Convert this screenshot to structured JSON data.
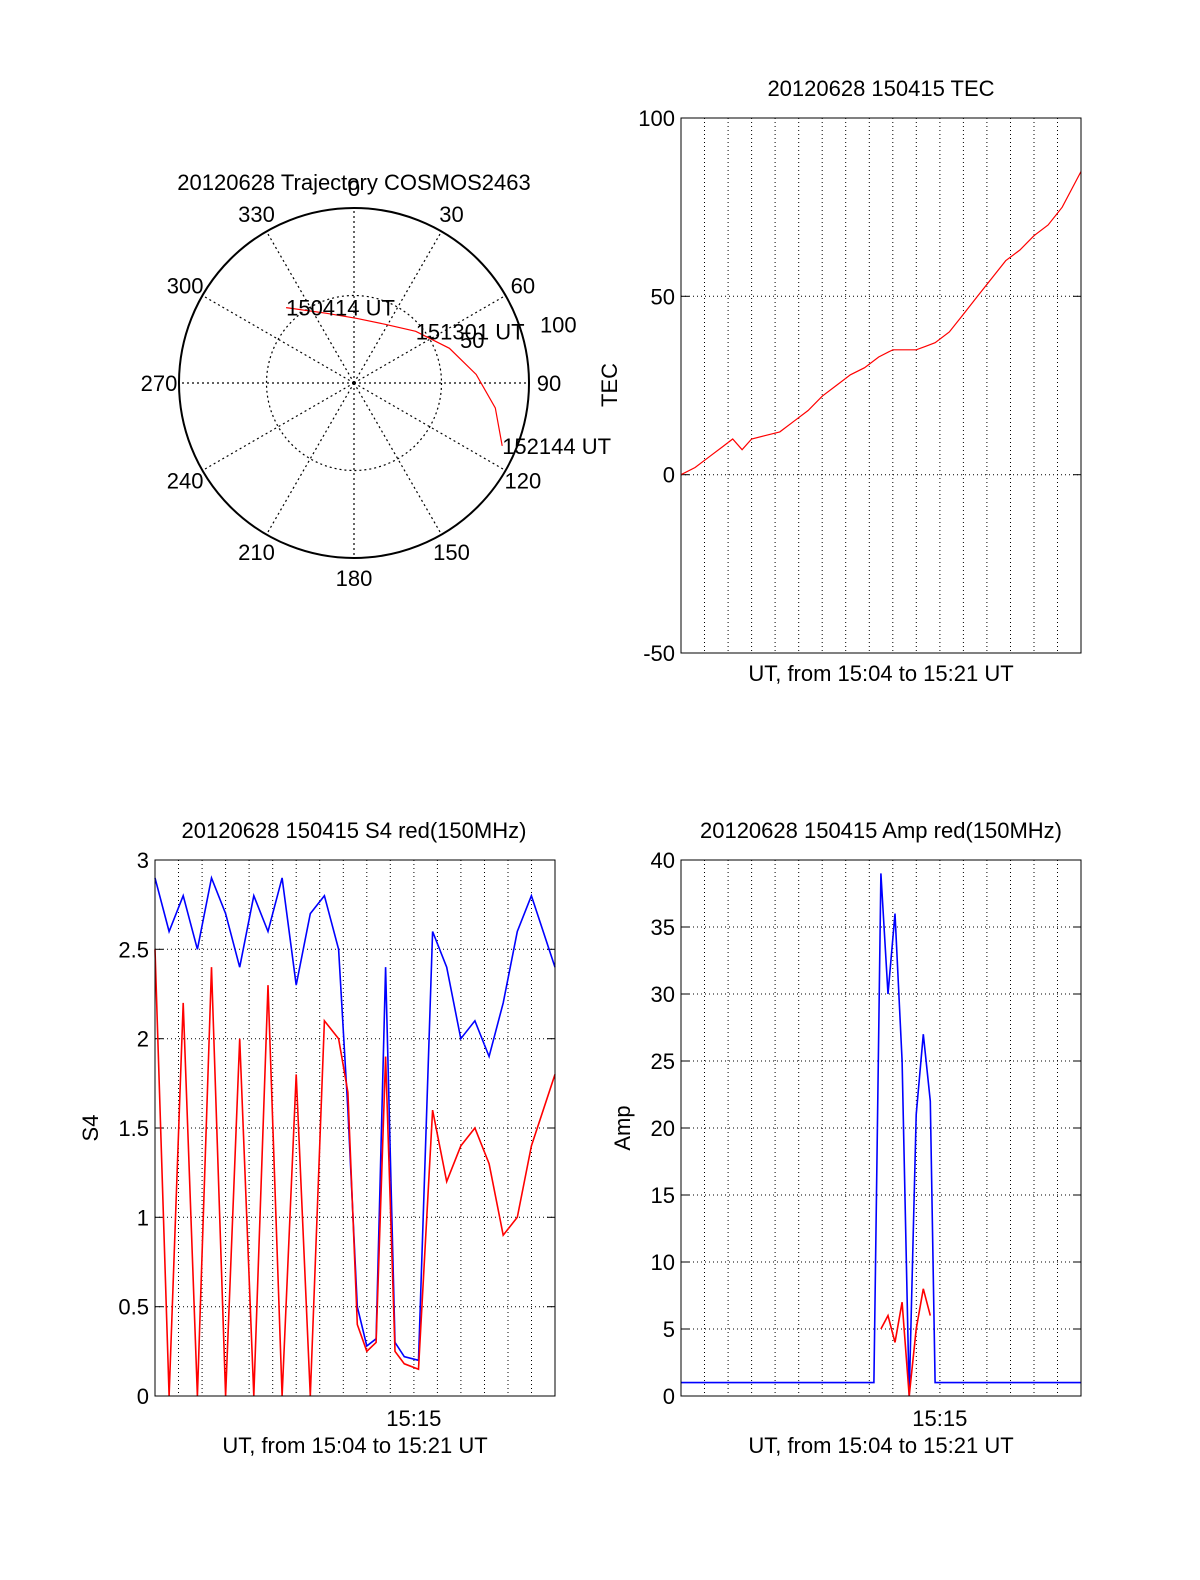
{
  "colors": {
    "primary": "#ff0000",
    "secondary": "#0000ff",
    "axis": "#000000",
    "grid": "#000000",
    "background": "#ffffff"
  },
  "chart_data": [
    {
      "type": "polar",
      "title": "20120628 Trajectory COSMOS2463",
      "azimuth_labels": [
        "0",
        "30",
        "60",
        "90",
        "120",
        "150",
        "180",
        "210",
        "240",
        "270",
        "300",
        "330"
      ],
      "radial_labels": [
        "50",
        "100"
      ],
      "radial_range": [
        0,
        100
      ],
      "grid": true,
      "track": {
        "color": "#ff0000",
        "points": [
          {
            "az": 318,
            "r": 58
          },
          {
            "az": 338,
            "r": 43
          },
          {
            "az": 2,
            "r": 37
          },
          {
            "az": 28,
            "r": 38
          },
          {
            "az": 50,
            "r": 46
          },
          {
            "az": 70,
            "r": 58
          },
          {
            "az": 86,
            "r": 70
          },
          {
            "az": 100,
            "r": 82
          },
          {
            "az": 113,
            "r": 92
          }
        ]
      },
      "annotations": [
        {
          "text": "150414 UT",
          "az": 318,
          "r": 58
        },
        {
          "text": "151301 UT",
          "az": 50,
          "r": 46
        },
        {
          "text": "152144 UT",
          "az": 113,
          "r": 92
        }
      ]
    },
    {
      "type": "line",
      "title": "20120628 150415 TEC",
      "xlabel": "UT, from 15:04 to 15:21 UT",
      "ylabel": "TEC",
      "xlim": [
        15.0667,
        15.35
      ],
      "ylim": [
        -50,
        100
      ],
      "yticks": [
        "-50",
        "0",
        "50",
        "100"
      ],
      "grid": true,
      "series": [
        {
          "color": "#ff0000",
          "x": [
            15.0667,
            15.0767,
            15.0867,
            15.0967,
            15.1033,
            15.11,
            15.1167,
            15.1267,
            15.1367,
            15.1467,
            15.1567,
            15.1667,
            15.1767,
            15.1867,
            15.1967,
            15.2067,
            15.2167,
            15.2267,
            15.2333,
            15.24,
            15.2467,
            15.2567,
            15.2667,
            15.2767,
            15.2867,
            15.2967,
            15.3067,
            15.3167,
            15.3267,
            15.3367,
            15.35
          ],
          "values": [
            0,
            2,
            5,
            8,
            10,
            7,
            10,
            11,
            12,
            15,
            18,
            22,
            25,
            28,
            30,
            33,
            35,
            35,
            35,
            36,
            37,
            40,
            45,
            50,
            55,
            60,
            63,
            67,
            70,
            75,
            85
          ]
        }
      ]
    },
    {
      "type": "line",
      "title": "20120628 150415 S4 red(150MHz)",
      "xlabel": "UT, from 15:04 to 15:21 UT",
      "ylabel": "S4",
      "xlim": [
        15.0667,
        15.35
      ],
      "ylim": [
        0,
        3
      ],
      "xticks": [
        "15:15"
      ],
      "yticks": [
        "0",
        "0.5",
        "1",
        "1.5",
        "2",
        "2.5",
        "3"
      ],
      "grid": true,
      "series": [
        {
          "color": "#0000ff",
          "x": [
            15.0667,
            15.0767,
            15.0867,
            15.0967,
            15.1067,
            15.1167,
            15.1267,
            15.1367,
            15.1467,
            15.1567,
            15.1667,
            15.1767,
            15.1867,
            15.1967,
            15.2033,
            15.21,
            15.2167,
            15.2233,
            15.23,
            15.2367,
            15.2433,
            15.2533,
            15.2633,
            15.2733,
            15.2833,
            15.2933,
            15.3033,
            15.3133,
            15.3233,
            15.3333,
            15.35
          ],
          "values": [
            2.9,
            2.6,
            2.8,
            2.5,
            2.9,
            2.7,
            2.4,
            2.8,
            2.6,
            2.9,
            2.3,
            2.7,
            2.8,
            2.5,
            1.6,
            0.5,
            0.28,
            0.32,
            2.4,
            0.3,
            0.22,
            0.2,
            2.6,
            2.4,
            2.0,
            2.1,
            1.9,
            2.2,
            2.6,
            2.8,
            2.4
          ]
        },
        {
          "color": "#ff0000",
          "x": [
            15.0667,
            15.0767,
            15.0867,
            15.0967,
            15.1067,
            15.1167,
            15.1267,
            15.1367,
            15.1467,
            15.1567,
            15.1667,
            15.1767,
            15.1867,
            15.1967,
            15.2033,
            15.21,
            15.2167,
            15.2233,
            15.23,
            15.2367,
            15.2433,
            15.2533,
            15.2633,
            15.2733,
            15.2833,
            15.2933,
            15.3033,
            15.3133,
            15.3233,
            15.3333,
            15.35
          ],
          "values": [
            2.5,
            0.0,
            2.2,
            0.0,
            2.4,
            0.0,
            2.0,
            0.0,
            2.3,
            0.0,
            1.8,
            0.0,
            2.1,
            2.0,
            1.7,
            0.4,
            0.25,
            0.3,
            1.9,
            0.25,
            0.18,
            0.15,
            1.6,
            1.2,
            1.4,
            1.5,
            1.3,
            0.9,
            1.0,
            1.4,
            1.8
          ]
        }
      ]
    },
    {
      "type": "line",
      "title": "20120628 150415 Amp red(150MHz)",
      "xlabel": "UT, from 15:04 to 15:21 UT",
      "ylabel": "Amp",
      "xlim": [
        15.0667,
        15.35
      ],
      "ylim": [
        0,
        40
      ],
      "xticks": [
        "15:15"
      ],
      "yticks": [
        "0",
        "5",
        "10",
        "15",
        "20",
        "25",
        "30",
        "35",
        "40"
      ],
      "grid": true,
      "series": [
        {
          "color": "#0000ff",
          "x": [
            15.0667,
            15.0867,
            15.1067,
            15.1267,
            15.1467,
            15.1667,
            15.1867,
            15.2033,
            15.2083,
            15.2133,
            15.2183,
            15.2233,
            15.2283,
            15.2333,
            15.2383,
            15.2433,
            15.2467,
            15.2533,
            15.2733,
            15.2933,
            15.3133,
            15.3333,
            15.35
          ],
          "values": [
            1,
            1,
            1,
            1,
            1,
            1,
            1,
            1,
            39,
            30,
            36,
            25,
            0,
            21,
            27,
            22,
            1,
            1,
            1,
            1,
            1,
            1,
            1
          ]
        },
        {
          "color": "#ff0000",
          "x": [
            15.2083,
            15.2133,
            15.2183,
            15.2233,
            15.2283,
            15.2333,
            15.2383,
            15.2433
          ],
          "values": [
            5,
            6,
            4,
            7,
            0,
            5,
            8,
            6
          ]
        }
      ]
    }
  ]
}
